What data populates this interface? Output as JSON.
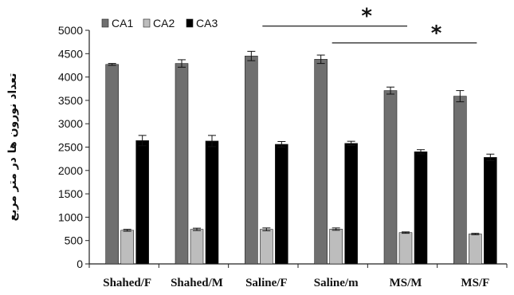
{
  "chart_data": {
    "type": "bar",
    "title": "",
    "xlabel": "",
    "ylabel": "تعداد نورون ها در متر مربع",
    "ylim": [
      0,
      5000
    ],
    "yticks": [
      0,
      500,
      1000,
      1500,
      2000,
      2500,
      3000,
      3500,
      4000,
      4500,
      5000
    ],
    "grid": false,
    "legend_position": "top-left",
    "categories": [
      "Shahed/F",
      "Shahed/M",
      "Saline/F",
      "Saline/m",
      "MS/M",
      "MS/F"
    ],
    "series": [
      {
        "name": "CA1",
        "color": "#6f6f6f",
        "values": [
          4270,
          4290,
          4450,
          4380,
          3710,
          3590
        ],
        "errors": [
          20,
          80,
          100,
          90,
          75,
          120
        ]
      },
      {
        "name": "CA2",
        "color": "#bdbdbd",
        "values": [
          720,
          740,
          740,
          745,
          670,
          640
        ],
        "errors": [
          20,
          25,
          30,
          25,
          15,
          15
        ]
      },
      {
        "name": "CA3",
        "color": "#000000",
        "values": [
          2640,
          2630,
          2560,
          2580,
          2400,
          2280
        ],
        "errors": [
          110,
          120,
          60,
          45,
          45,
          70
        ]
      }
    ],
    "annotations": [
      {
        "text": "*",
        "from_category": "Saline/F",
        "to_category": "MS/M",
        "level": 5090
      },
      {
        "text": "*",
        "from_category": "Saline/m",
        "to_category": "MS/F",
        "level": 4730
      }
    ]
  }
}
